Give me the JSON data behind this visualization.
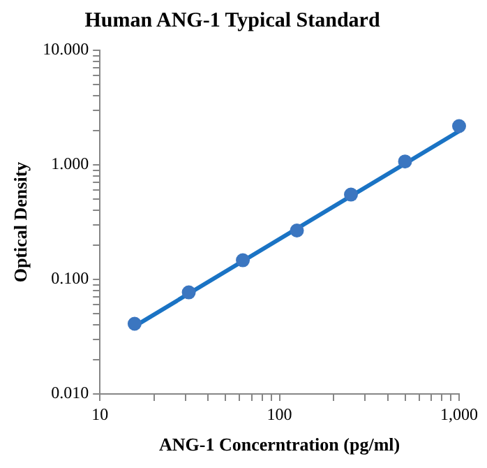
{
  "chart_data": {
    "type": "scatter",
    "title": "Human ANG-1 Typical Standard",
    "xlabel": "ANG-1 Concerntration (pg/ml)",
    "ylabel": "Optical Density",
    "log": "xy",
    "xlim": [
      10,
      1000
    ],
    "ylim": [
      0.01,
      10
    ],
    "xticks": [
      10,
      {
        "value": 20,
        "label": null
      },
      {
        "value": 30,
        "label": null
      },
      {
        "value": 40,
        "label": null
      },
      {
        "value": 50,
        "label": null
      },
      {
        "value": 60,
        "label": null
      },
      {
        "value": 70,
        "label": null
      },
      {
        "value": 80,
        "label": null
      },
      {
        "value": 90,
        "label": null
      },
      100,
      {
        "value": 200,
        "label": null
      },
      {
        "value": 300,
        "label": null
      },
      {
        "value": 400,
        "label": null
      },
      {
        "value": 500,
        "label": null
      },
      {
        "value": 600,
        "label": null
      },
      {
        "value": 700,
        "label": null
      },
      {
        "value": 800,
        "label": null
      },
      {
        "value": 900,
        "label": null
      },
      {
        "value": 1000,
        "label": "1,000"
      }
    ],
    "yticks": [
      {
        "value": 0.01,
        "label": "0.010"
      },
      {
        "value": 0.02,
        "label": null
      },
      {
        "value": 0.03,
        "label": null
      },
      {
        "value": 0.04,
        "label": null
      },
      {
        "value": 0.05,
        "label": null
      },
      {
        "value": 0.06,
        "label": null
      },
      {
        "value": 0.07,
        "label": null
      },
      {
        "value": 0.08,
        "label": null
      },
      {
        "value": 0.09,
        "label": null
      },
      {
        "value": 0.1,
        "label": "0.100"
      },
      {
        "value": 0.2,
        "label": null
      },
      {
        "value": 0.3,
        "label": null
      },
      {
        "value": 0.4,
        "label": null
      },
      {
        "value": 0.5,
        "label": null
      },
      {
        "value": 0.6,
        "label": null
      },
      {
        "value": 0.7,
        "label": null
      },
      {
        "value": 0.8,
        "label": null
      },
      {
        "value": 0.9,
        "label": null
      },
      {
        "value": 1,
        "label": "1.000"
      },
      {
        "value": 2,
        "label": null
      },
      {
        "value": 3,
        "label": null
      },
      {
        "value": 4,
        "label": null
      },
      {
        "value": 5,
        "label": null
      },
      {
        "value": 6,
        "label": null
      },
      {
        "value": 7,
        "label": null
      },
      {
        "value": 8,
        "label": null
      },
      {
        "value": 9,
        "label": null
      },
      {
        "value": 10,
        "label": "10.000"
      }
    ],
    "grid": false,
    "legend": false,
    "marker": "circle",
    "series": [
      {
        "type": "line",
        "marker": "none",
        "line_style": "solid",
        "color": "#1a73c4",
        "x": [
          15.6,
          1000
        ],
        "values": [
          0.039,
          1.97
        ]
      },
      {
        "color": "#3b76c0",
        "x": [
          15.6,
          31.25,
          62.5,
          125,
          250,
          500,
          1000
        ],
        "values": [
          0.041,
          0.077,
          0.147,
          0.267,
          0.55,
          1.07,
          2.18
        ]
      }
    ]
  }
}
